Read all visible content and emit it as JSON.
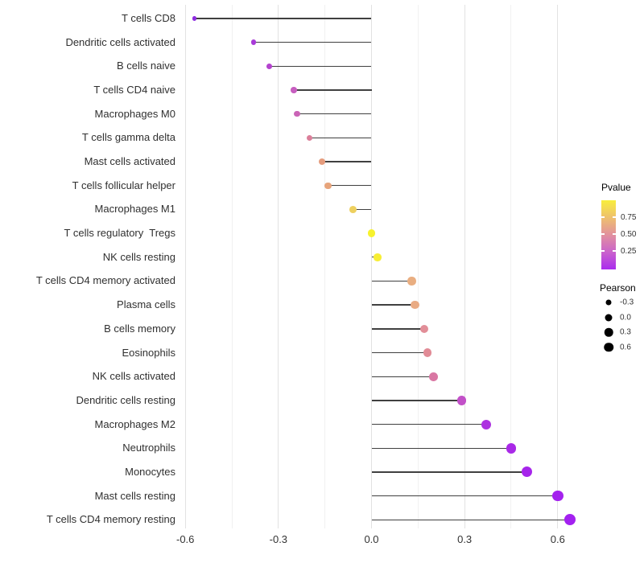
{
  "chart_data": {
    "type": "scatter",
    "subtype": "lollipop",
    "title": "",
    "xlabel": "",
    "ylabel": "",
    "xlim": [
      -0.63,
      0.74
    ],
    "grid": true,
    "baseline": 0.0,
    "x_ticks": [
      {
        "value": -0.6,
        "label": "-0.6"
      },
      {
        "value": -0.3,
        "label": "-0.3"
      },
      {
        "value": 0.0,
        "label": "0.0"
      },
      {
        "value": 0.3,
        "label": "0.3"
      },
      {
        "value": 0.6,
        "label": "0.6"
      }
    ],
    "x_minor_ticks": [
      -0.45,
      -0.15,
      0.15,
      0.45
    ],
    "points": [
      {
        "label": "T cells CD8",
        "pearson": -0.57,
        "color": "#8e2ce0"
      },
      {
        "label": "Dendritic cells activated",
        "pearson": -0.38,
        "color": "#a83ad8"
      },
      {
        "label": "B cells naive",
        "pearson": -0.33,
        "color": "#b443ce"
      },
      {
        "label": "T cells CD4 naive",
        "pearson": -0.25,
        "color": "#c75ec0"
      },
      {
        "label": "Macrophages M0",
        "pearson": -0.24,
        "color": "#ca64b6"
      },
      {
        "label": "T cells gamma delta",
        "pearson": -0.2,
        "color": "#db7f9a"
      },
      {
        "label": "Mast cells activated",
        "pearson": -0.16,
        "color": "#e59c7d"
      },
      {
        "label": "T cells follicular helper",
        "pearson": -0.14,
        "color": "#e7a47b"
      },
      {
        "label": "Macrophages M1",
        "pearson": -0.06,
        "color": "#eed05f"
      },
      {
        "label": "T cells regulatory  Tregs",
        "pearson": 0.0,
        "color": "#f7f22e"
      },
      {
        "label": "NK cells resting",
        "pearson": 0.02,
        "color": "#f7ee34"
      },
      {
        "label": "T cells CD4 memory activated",
        "pearson": 0.13,
        "color": "#e9ae81"
      },
      {
        "label": "Plasma cells",
        "pearson": 0.14,
        "color": "#e9ab84"
      },
      {
        "label": "B cells memory",
        "pearson": 0.17,
        "color": "#e28e98"
      },
      {
        "label": "Eosinophils",
        "pearson": 0.18,
        "color": "#e18b96"
      },
      {
        "label": "NK cells activated",
        "pearson": 0.2,
        "color": "#d977a3"
      },
      {
        "label": "Dendritic cells resting",
        "pearson": 0.29,
        "color": "#c250c8"
      },
      {
        "label": "Macrophages M2",
        "pearson": 0.37,
        "color": "#ad32e0"
      },
      {
        "label": "Neutrophils",
        "pearson": 0.45,
        "color": "#a929e7"
      },
      {
        "label": "Monocytes",
        "pearson": 0.5,
        "color": "#a625eb"
      },
      {
        "label": "Mast cells resting",
        "pearson": 0.6,
        "color": "#a422ee"
      },
      {
        "label": "T cells CD4 memory resting",
        "pearson": 0.64,
        "color": "#a321f0"
      }
    ],
    "color_legend": {
      "title": "Pvalue",
      "gradient_top_to_bottom": [
        "#f8ee3c",
        "#eec06e",
        "#e2919e",
        "#ca63cc",
        "#aa2cee"
      ],
      "ticks": [
        {
          "label": "0.75",
          "fraction_from_top": 0.244
        },
        {
          "label": "0.50",
          "fraction_from_top": 0.488
        },
        {
          "label": "0.25",
          "fraction_from_top": 0.733
        }
      ]
    },
    "size_legend": {
      "title": "Pearson",
      "entries": [
        {
          "label": "-0.3",
          "diameter": 7
        },
        {
          "label": "0.0",
          "diameter": 9
        },
        {
          "label": "0.3",
          "diameter": 10.5
        },
        {
          "label": "0.6",
          "diameter": 11.5
        }
      ]
    },
    "legend_position": "right"
  }
}
